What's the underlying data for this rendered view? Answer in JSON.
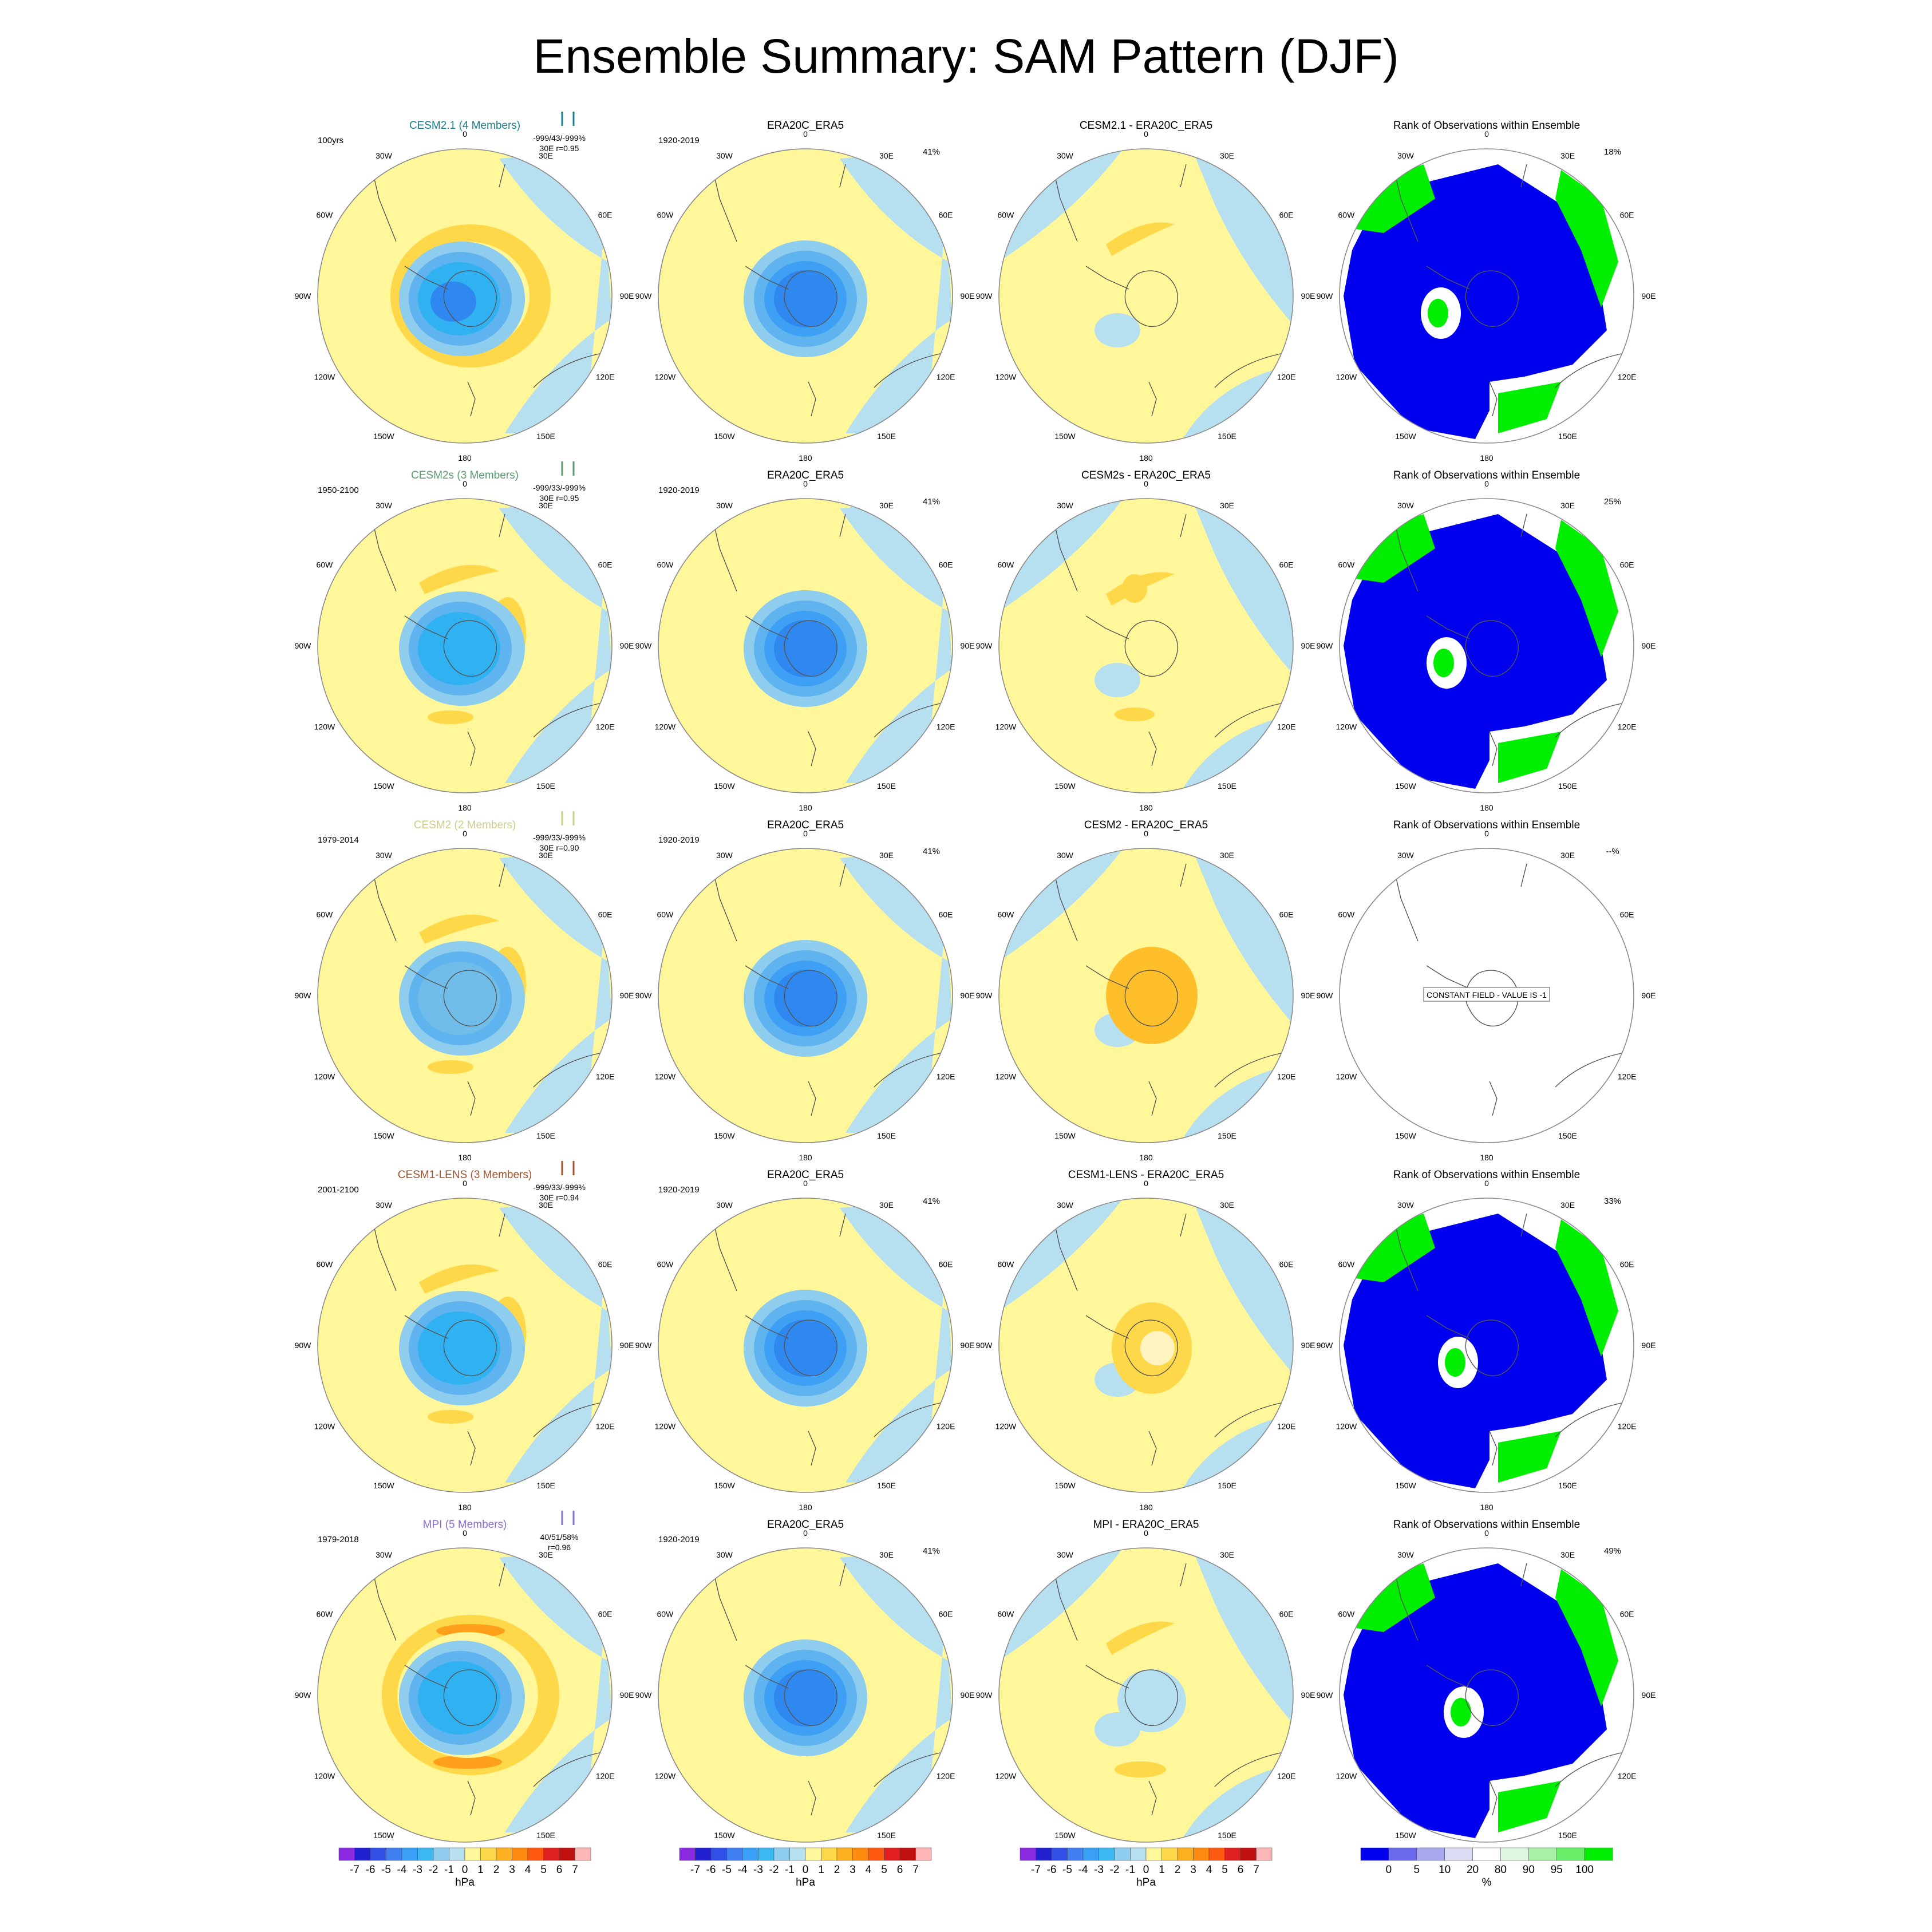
{
  "title": "Ensemble Summary: SAM Pattern (DJF)",
  "chart_data": {
    "type": "polar-map-panels",
    "title": "Ensemble Summary: SAM Pattern (DJF)",
    "unit_contour": "hPa",
    "unit_rank": "%",
    "longitude_labels": {
      "0": "0",
      "30E": "30E",
      "60E": "60E",
      "90E": "90E",
      "120E": "120E",
      "150E": "150E",
      "180": "180",
      "150W": "150W",
      "120W": "120W",
      "90W": "90W",
      "60W": "60W",
      "30W": "30W"
    },
    "obs_title": "ERA20C_ERA5",
    "obs_period": "1920-2019",
    "obs_pct": "41%",
    "rank_title": "Rank of Observations within Ensemble",
    "rows": [
      {
        "model": "CESM2.1 (4 Members)",
        "color": "#1a7f8c",
        "period": "100yrs",
        "stats1": "-999/43/-999%",
        "stats2": "30E  r=0.95",
        "diff_title": "CESM2.1 - ERA20C_ERA5",
        "rank_pct": "18%",
        "constant": ""
      },
      {
        "model": "CESM2s (3 Members)",
        "color": "#5a9a6e",
        "period": "1950-2100",
        "stats1": "-999/33/-999%",
        "stats2": "30E  r=0.95",
        "diff_title": "CESM2s - ERA20C_ERA5",
        "rank_pct": "25%",
        "constant": ""
      },
      {
        "model": "CESM2 (2 Members)",
        "color": "#c9cf8a",
        "period": "1979-2014",
        "stats1": "-999/33/-999%",
        "stats2": "30E  r=0.90",
        "diff_title": "CESM2 - ERA20C_ERA5",
        "rank_pct": "--%",
        "constant": "CONSTANT FIELD - VALUE IS -1"
      },
      {
        "model": "CESM1-LENS (3 Members)",
        "color": "#a0522d",
        "period": "2001-2100",
        "stats1": "-999/33/-999%",
        "stats2": "30E  r=0.94",
        "diff_title": "CESM1-LENS - ERA20C_ERA5",
        "rank_pct": "33%",
        "constant": ""
      },
      {
        "model": "MPI (5 Members)",
        "color": "#8a6fd1",
        "period": "1979-2018",
        "stats1": "40/51/58%",
        "stats2": "r=0.96",
        "diff_title": "MPI - ERA20C_ERA5",
        "rank_pct": "49%",
        "constant": ""
      }
    ],
    "colorbar_hpa": {
      "labels": [
        "-7",
        "-6",
        "-5",
        "-4",
        "-3",
        "-2",
        "-1",
        "0",
        "1",
        "2",
        "3",
        "4",
        "5",
        "6",
        "7"
      ],
      "colors": [
        "#8a2be2",
        "#2020d0",
        "#3050e8",
        "#3f7ff0",
        "#3aa0f5",
        "#3cb8f2",
        "#8ecdee",
        "#b6dff0",
        "#fff79a",
        "#ffd84a",
        "#ffb020",
        "#ff8a10",
        "#ff5a10",
        "#e02020",
        "#c01010",
        "#ffb6b6"
      ]
    },
    "colorbar_pct": {
      "labels": [
        "0",
        "5",
        "10",
        "20",
        "80",
        "90",
        "95",
        "100"
      ],
      "colors": [
        "#0000ee",
        "#6a6aee",
        "#a8a8ee",
        "#dcdcf5",
        "#ffffff",
        "#dff7df",
        "#a8f0a8",
        "#6aee6a",
        "#00ee00"
      ]
    }
  }
}
